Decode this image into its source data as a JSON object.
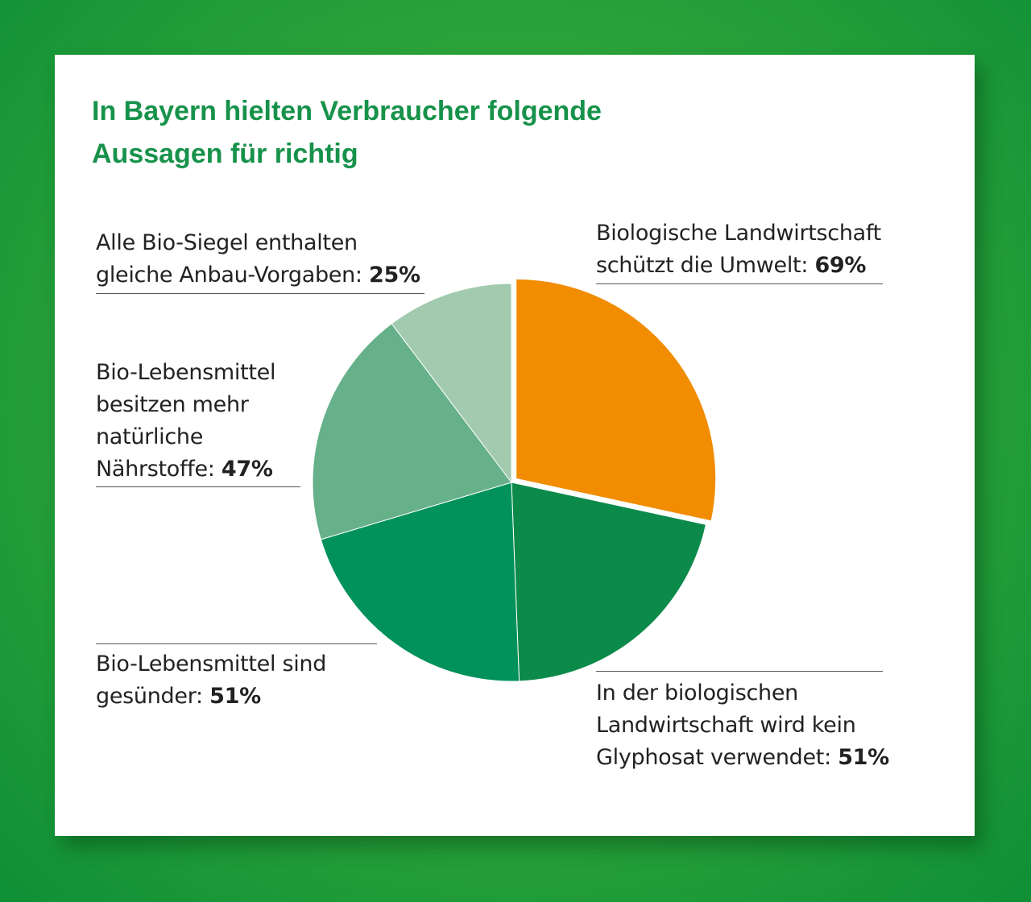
{
  "title_lines": [
    "In Bayern hielten Verbraucher folgende",
    "Aussagen für richtig"
  ],
  "chart_data": {
    "type": "pie",
    "title": "In Bayern hielten Verbraucher folgende Aussagen für richtig",
    "unit": "%",
    "slices": [
      {
        "label": "Biologische Landwirtschaft schützt die Umwelt",
        "value": 69,
        "value_label": "69%",
        "color": "#f28c00",
        "exploded": true,
        "label_lines": [
          "Biologische Landwirtschaft",
          "schützt die Umwelt:"
        ]
      },
      {
        "label": "In der biologischen Landwirtschaft wird kein Glyphosat verwendet",
        "value": 51,
        "value_label": "51%",
        "color": "#0c8a49",
        "label_lines": [
          "In der biologischen",
          "Landwirtschaft wird kein",
          "Glyphosat verwendet:"
        ]
      },
      {
        "label": "Bio-Lebensmittel sind gesünder",
        "value": 51,
        "value_label": "51%",
        "color": "#00925a",
        "label_lines": [
          "Bio-Lebensmittel sind",
          "gesünder:"
        ]
      },
      {
        "label": "Bio-Lebensmittel besitzen mehr natürliche Nährstoffe",
        "value": 47,
        "value_label": "47%",
        "color": "#66b08a",
        "label_lines": [
          "Bio-Lebensmittel",
          "besitzen mehr",
          "natürliche",
          "Nährstoffe:"
        ]
      },
      {
        "label": "Alle Bio-Siegel enthalten gleiche Anbau-Vorgaben",
        "value": 25,
        "value_label": "25%",
        "color": "#a1caae",
        "label_lines": [
          "Alle Bio-Siegel enthalten",
          "gleiche Anbau-Vorgaben:"
        ]
      }
    ]
  },
  "colors": {
    "title": "#17924a",
    "background": "#2ea63a"
  }
}
